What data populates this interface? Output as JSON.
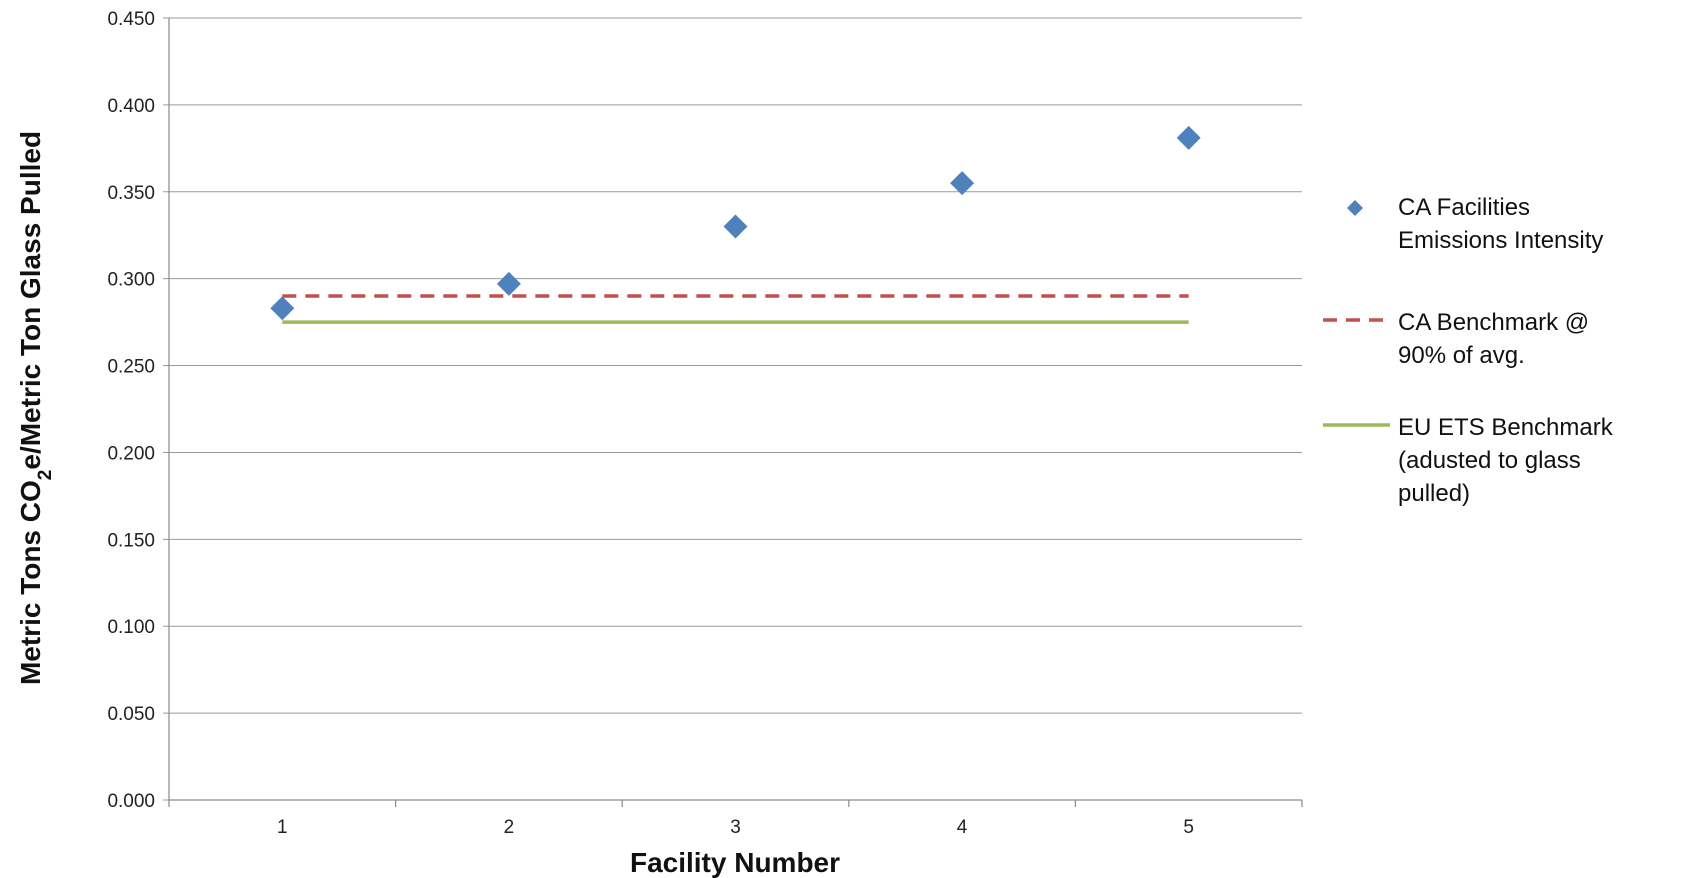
{
  "chart_data": {
    "type": "scatter",
    "title": "",
    "xlabel": "Facility Number",
    "ylabel": {
      "before": "Metric Tons CO",
      "subscript": "2",
      "after": "e/Metric Ton Glass Pulled"
    },
    "x": [
      1,
      2,
      3,
      4,
      5
    ],
    "xlim": [
      0.5,
      5.5
    ],
    "ylim": [
      0,
      0.45
    ],
    "y_tick_labels": [
      "0.000",
      "0.050",
      "0.100",
      "0.150",
      "0.200",
      "0.250",
      "0.300",
      "0.350",
      "0.400",
      "0.450"
    ],
    "x_tick_labels": [
      "1",
      "2",
      "3",
      "4",
      "5"
    ],
    "grid": "horizontal",
    "legend_position": "right",
    "series": [
      {
        "name": "CA Facilities Emissions Intensity",
        "legend_lines": [
          "CA Facilities",
          "Emissions Intensity"
        ],
        "kind": "markers",
        "marker": "diamond",
        "color": "#4F81BD",
        "x": [
          1,
          2,
          3,
          4,
          5
        ],
        "y": [
          0.283,
          0.297,
          0.33,
          0.355,
          0.381
        ]
      },
      {
        "name": "CA Benchmark @ 90% of avg.",
        "legend_lines": [
          "CA Benchmark @",
          "90% of avg."
        ],
        "kind": "dashed-line",
        "color": "#C0504D",
        "x": [
          1,
          5
        ],
        "y": [
          0.29,
          0.29
        ]
      },
      {
        "name": "EU ETS Benchmark (adusted to glass pulled)",
        "legend_lines": [
          "EU ETS Benchmark",
          "(adusted to glass",
          "pulled)"
        ],
        "kind": "solid-line",
        "color": "#9BBB59",
        "x": [
          1,
          5
        ],
        "y": [
          0.275,
          0.275
        ]
      }
    ]
  }
}
